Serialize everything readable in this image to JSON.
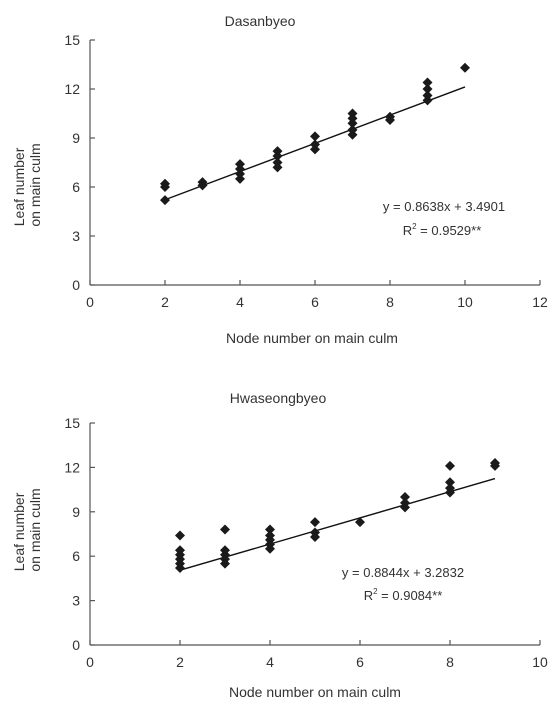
{
  "chart_data": [
    {
      "type": "scatter",
      "title": "Dasanbyeo",
      "xlabel": "Node number on main culm",
      "ylabel_lines": [
        "Leaf number",
        "on main culm"
      ],
      "xlim": [
        0,
        12
      ],
      "ylim": [
        0,
        15
      ],
      "xticks": [
        0,
        2,
        4,
        6,
        8,
        10,
        12
      ],
      "yticks": [
        0,
        3,
        6,
        9,
        12,
        15
      ],
      "points": [
        [
          2,
          5.2
        ],
        [
          2,
          6.0
        ],
        [
          2,
          6.2
        ],
        [
          3,
          6.1
        ],
        [
          3,
          6.3
        ],
        [
          4,
          6.5
        ],
        [
          4,
          6.8
        ],
        [
          4,
          7.1
        ],
        [
          4,
          7.4
        ],
        [
          5,
          7.2
        ],
        [
          5,
          7.5
        ],
        [
          5,
          7.9
        ],
        [
          5,
          8.2
        ],
        [
          6,
          8.3
        ],
        [
          6,
          8.6
        ],
        [
          6,
          9.1
        ],
        [
          7,
          9.2
        ],
        [
          7,
          9.5
        ],
        [
          7,
          9.9
        ],
        [
          7,
          10.2
        ],
        [
          7,
          10.5
        ],
        [
          8,
          10.1
        ],
        [
          8,
          10.3
        ],
        [
          9,
          11.3
        ],
        [
          9,
          11.6
        ],
        [
          9,
          12.0
        ],
        [
          9,
          12.4
        ],
        [
          10,
          13.3
        ]
      ],
      "trendline": {
        "slope": 0.8638,
        "intercept": 3.4901,
        "x_range": [
          2,
          10
        ]
      },
      "equation": "y = 0.8638x + 3.4901",
      "r2_label": "R",
      "r2_sup": "2",
      "r2_value": " = 0.9529**",
      "grid": false,
      "legend": "none"
    },
    {
      "type": "scatter",
      "title": "Hwaseongbyeo",
      "xlabel": "Node number on main culm",
      "ylabel_lines": [
        "Leaf number",
        "on main culm"
      ],
      "xlim": [
        0,
        10
      ],
      "ylim": [
        0,
        15
      ],
      "xticks": [
        0,
        2,
        4,
        6,
        8,
        10
      ],
      "yticks": [
        0,
        3,
        6,
        9,
        12,
        15
      ],
      "points": [
        [
          2,
          5.2
        ],
        [
          2,
          5.5
        ],
        [
          2,
          5.8
        ],
        [
          2,
          6.1
        ],
        [
          2,
          6.4
        ],
        [
          2,
          7.4
        ],
        [
          3,
          5.5
        ],
        [
          3,
          5.8
        ],
        [
          3,
          6.1
        ],
        [
          3,
          6.4
        ],
        [
          3,
          7.8
        ],
        [
          4,
          6.5
        ],
        [
          4,
          6.8
        ],
        [
          4,
          7.1
        ],
        [
          4,
          7.4
        ],
        [
          4,
          7.8
        ],
        [
          5,
          7.3
        ],
        [
          5,
          7.6
        ],
        [
          5,
          8.3
        ],
        [
          6,
          8.3
        ],
        [
          7,
          9.3
        ],
        [
          7,
          9.6
        ],
        [
          7,
          10.0
        ],
        [
          8,
          10.3
        ],
        [
          8,
          10.6
        ],
        [
          8,
          11.0
        ],
        [
          8,
          12.1
        ],
        [
          9,
          12.1
        ],
        [
          9,
          12.3
        ]
      ],
      "trendline": {
        "slope": 0.8844,
        "intercept": 3.2832,
        "x_range": [
          2,
          9
        ]
      },
      "equation": "y = 0.8844x + 3.2832",
      "r2_label": "R",
      "r2_sup": "2",
      "r2_value": " = 0.9084**",
      "grid": false,
      "legend": "none"
    }
  ]
}
